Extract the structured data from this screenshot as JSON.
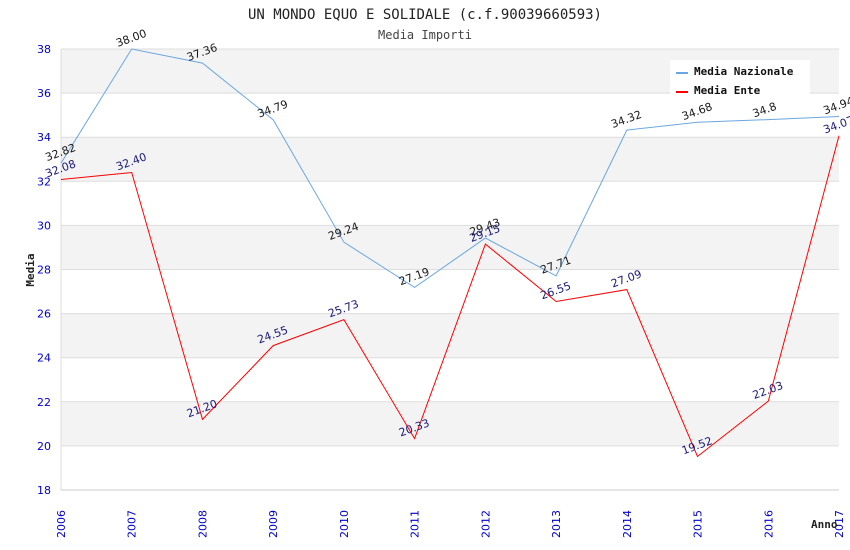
{
  "chart_data": {
    "type": "line",
    "title": "UN MONDO EQUO E SOLIDALE (c.f.90039660593)",
    "subtitle": "Media Importi",
    "xlabel": "Anno",
    "ylabel": "Media",
    "ylim": [
      18,
      38
    ],
    "yticks": [
      "18",
      "20",
      "22",
      "24",
      "26",
      "28",
      "30",
      "32",
      "34",
      "36",
      "38"
    ],
    "categories": [
      "2006",
      "2007",
      "2008",
      "2009",
      "2010",
      "2011",
      "2012",
      "2013",
      "2014",
      "2015",
      "2016",
      "2017"
    ],
    "grid": true,
    "legend_position": "top-right",
    "series": [
      {
        "name": "Media Nazionale",
        "color": "#6aa7e0",
        "values": [
          32.82,
          38.0,
          37.36,
          34.79,
          29.24,
          27.19,
          29.43,
          27.71,
          34.32,
          34.68,
          34.8,
          34.94
        ],
        "labels": [
          "32.82",
          "38.00",
          "37.36",
          "34.79",
          "29.24",
          "27.19",
          "29.43",
          "27.71",
          "34.32",
          "34.68",
          "34.8",
          "34.94"
        ]
      },
      {
        "name": "Media Ente",
        "color": "#ff0000",
        "values": [
          32.08,
          32.4,
          21.2,
          24.55,
          25.73,
          20.33,
          29.15,
          26.55,
          27.09,
          19.52,
          22.03,
          34.07
        ],
        "labels": [
          "32.08",
          "32.40",
          "21.20",
          "24.55",
          "25.73",
          "20.33",
          "29.15",
          "26.55",
          "27.09",
          "19.52",
          "22.03",
          "34.07"
        ]
      }
    ]
  }
}
